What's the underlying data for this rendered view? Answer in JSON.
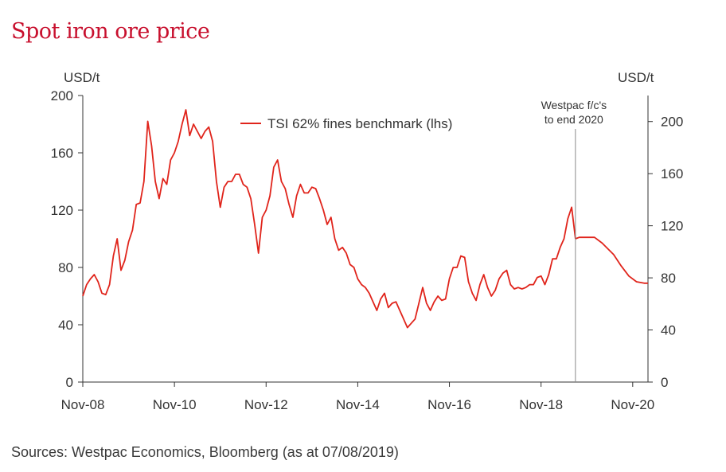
{
  "chart_data": {
    "type": "line",
    "title": "Spot iron ore price",
    "source": "Sources: Westpac Economics, Bloomberg (as at 07/08/2019)",
    "y_left_label": "USD/t",
    "y_right_label": "USD/t",
    "y_left_range": [
      0,
      200
    ],
    "y_left_ticks": [
      "0",
      "40",
      "80",
      "120",
      "160",
      "200"
    ],
    "y_right_range": [
      0,
      220
    ],
    "y_right_ticks": [
      "0",
      "40",
      "80",
      "120",
      "160",
      "200"
    ],
    "x_ticks": [
      "Nov-08",
      "Nov-10",
      "Nov-12",
      "Nov-14",
      "Nov-16",
      "Nov-18",
      "Nov-20"
    ],
    "x_range": [
      "2008-11",
      "2021-03"
    ],
    "legend": [
      "TSI 62% fines benchmark (lhs)"
    ],
    "legend_position": "top-center",
    "line_color": "#e0241b",
    "annotation": {
      "text_line1": "Westpac f/c's",
      "text_line2": "to end 2020",
      "date": "2019-08"
    },
    "series": [
      {
        "name": "TSI 62% fines benchmark (lhs)",
        "points": [
          [
            "2008-11",
            60
          ],
          [
            "2008-12",
            68
          ],
          [
            "2009-01",
            72
          ],
          [
            "2009-02",
            75
          ],
          [
            "2009-03",
            70
          ],
          [
            "2009-04",
            62
          ],
          [
            "2009-05",
            61
          ],
          [
            "2009-06",
            68
          ],
          [
            "2009-07",
            88
          ],
          [
            "2009-08",
            100
          ],
          [
            "2009-09",
            78
          ],
          [
            "2009-10",
            85
          ],
          [
            "2009-11",
            98
          ],
          [
            "2009-12",
            106
          ],
          [
            "2010-01",
            124
          ],
          [
            "2010-02",
            125
          ],
          [
            "2010-03",
            140
          ],
          [
            "2010-04",
            182
          ],
          [
            "2010-05",
            165
          ],
          [
            "2010-06",
            140
          ],
          [
            "2010-07",
            128
          ],
          [
            "2010-08",
            142
          ],
          [
            "2010-09",
            138
          ],
          [
            "2010-10",
            155
          ],
          [
            "2010-11",
            160
          ],
          [
            "2010-12",
            168
          ],
          [
            "2011-01",
            180
          ],
          [
            "2011-02",
            190
          ],
          [
            "2011-03",
            172
          ],
          [
            "2011-04",
            180
          ],
          [
            "2011-05",
            175
          ],
          [
            "2011-06",
            170
          ],
          [
            "2011-07",
            175
          ],
          [
            "2011-08",
            178
          ],
          [
            "2011-09",
            168
          ],
          [
            "2011-10",
            140
          ],
          [
            "2011-11",
            122
          ],
          [
            "2011-12",
            136
          ],
          [
            "2012-01",
            140
          ],
          [
            "2012-02",
            140
          ],
          [
            "2012-03",
            145
          ],
          [
            "2012-04",
            145
          ],
          [
            "2012-05",
            138
          ],
          [
            "2012-06",
            136
          ],
          [
            "2012-07",
            128
          ],
          [
            "2012-08",
            110
          ],
          [
            "2012-09",
            90
          ],
          [
            "2012-10",
            115
          ],
          [
            "2012-11",
            120
          ],
          [
            "2012-12",
            130
          ],
          [
            "2013-01",
            150
          ],
          [
            "2013-02",
            155
          ],
          [
            "2013-03",
            140
          ],
          [
            "2013-04",
            135
          ],
          [
            "2013-05",
            124
          ],
          [
            "2013-06",
            115
          ],
          [
            "2013-07",
            130
          ],
          [
            "2013-08",
            138
          ],
          [
            "2013-09",
            132
          ],
          [
            "2013-10",
            132
          ],
          [
            "2013-11",
            136
          ],
          [
            "2013-12",
            135
          ],
          [
            "2014-01",
            128
          ],
          [
            "2014-02",
            120
          ],
          [
            "2014-03",
            110
          ],
          [
            "2014-04",
            115
          ],
          [
            "2014-05",
            100
          ],
          [
            "2014-06",
            92
          ],
          [
            "2014-07",
            94
          ],
          [
            "2014-08",
            90
          ],
          [
            "2014-09",
            82
          ],
          [
            "2014-10",
            80
          ],
          [
            "2014-11",
            72
          ],
          [
            "2014-12",
            68
          ],
          [
            "2015-01",
            66
          ],
          [
            "2015-02",
            62
          ],
          [
            "2015-03",
            56
          ],
          [
            "2015-04",
            50
          ],
          [
            "2015-05",
            58
          ],
          [
            "2015-06",
            62
          ],
          [
            "2015-07",
            52
          ],
          [
            "2015-08",
            55
          ],
          [
            "2015-09",
            56
          ],
          [
            "2015-10",
            50
          ],
          [
            "2015-11",
            44
          ],
          [
            "2015-12",
            38
          ],
          [
            "2016-01",
            41
          ],
          [
            "2016-02",
            44
          ],
          [
            "2016-03",
            55
          ],
          [
            "2016-04",
            66
          ],
          [
            "2016-05",
            55
          ],
          [
            "2016-06",
            50
          ],
          [
            "2016-07",
            56
          ],
          [
            "2016-08",
            60
          ],
          [
            "2016-09",
            57
          ],
          [
            "2016-10",
            58
          ],
          [
            "2016-11",
            72
          ],
          [
            "2016-12",
            80
          ],
          [
            "2017-01",
            80
          ],
          [
            "2017-02",
            88
          ],
          [
            "2017-03",
            87
          ],
          [
            "2017-04",
            70
          ],
          [
            "2017-05",
            62
          ],
          [
            "2017-06",
            57
          ],
          [
            "2017-07",
            68
          ],
          [
            "2017-08",
            75
          ],
          [
            "2017-09",
            66
          ],
          [
            "2017-10",
            60
          ],
          [
            "2017-11",
            64
          ],
          [
            "2017-12",
            72
          ],
          [
            "2018-01",
            76
          ],
          [
            "2018-02",
            78
          ],
          [
            "2018-03",
            68
          ],
          [
            "2018-04",
            65
          ],
          [
            "2018-05",
            66
          ],
          [
            "2018-06",
            65
          ],
          [
            "2018-07",
            66
          ],
          [
            "2018-08",
            68
          ],
          [
            "2018-09",
            68
          ],
          [
            "2018-10",
            73
          ],
          [
            "2018-11",
            74
          ],
          [
            "2018-12",
            68
          ],
          [
            "2019-01",
            75
          ],
          [
            "2019-02",
            86
          ],
          [
            "2019-03",
            86
          ],
          [
            "2019-04",
            94
          ],
          [
            "2019-05",
            100
          ],
          [
            "2019-06",
            114
          ],
          [
            "2019-07",
            122
          ],
          [
            "2019-08",
            100
          ]
        ]
      },
      {
        "name": "Westpac f/c's",
        "points": [
          [
            "2019-08",
            100
          ],
          [
            "2019-09",
            101
          ],
          [
            "2019-12",
            101
          ],
          [
            "2020-01",
            101
          ],
          [
            "2020-03",
            97
          ],
          [
            "2020-06",
            89
          ],
          [
            "2020-08",
            81
          ],
          [
            "2020-10",
            74
          ],
          [
            "2020-12",
            70
          ],
          [
            "2021-02",
            69
          ],
          [
            "2021-03",
            69
          ]
        ]
      }
    ]
  }
}
